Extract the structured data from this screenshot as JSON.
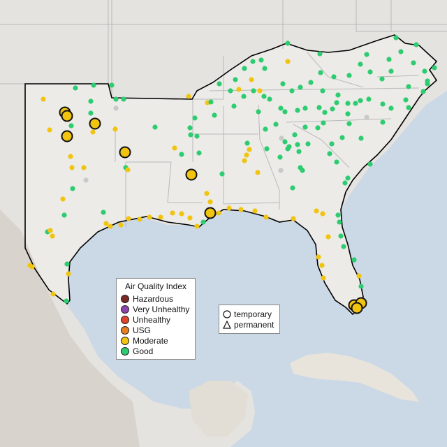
{
  "legend": {
    "title": "Air Quality Index",
    "categories": [
      {
        "label": "Hazardous",
        "color": "#7b2a22"
      },
      {
        "label": "Very Unhealthy",
        "color": "#8e44ad"
      },
      {
        "label": "Unhealthy",
        "color": "#e0452c"
      },
      {
        "label": "USG",
        "color": "#e67e22"
      },
      {
        "label": "Moderate",
        "color": "#f1c40f"
      },
      {
        "label": "Good",
        "color": "#2ecc71"
      }
    ]
  },
  "monitor_types": {
    "temporary": "temporary",
    "permanent": "permanent"
  },
  "colors": {
    "ocean": "#cbd8e6",
    "land_region": "#ecebe8",
    "land_outside": "#e5e3df",
    "mountain": "#d8d3cc",
    "cuba": "#e8e4dc",
    "state_lines": "#b9b9b9",
    "region_outline": "#000000",
    "no_data": "#c9c9c9"
  }
}
